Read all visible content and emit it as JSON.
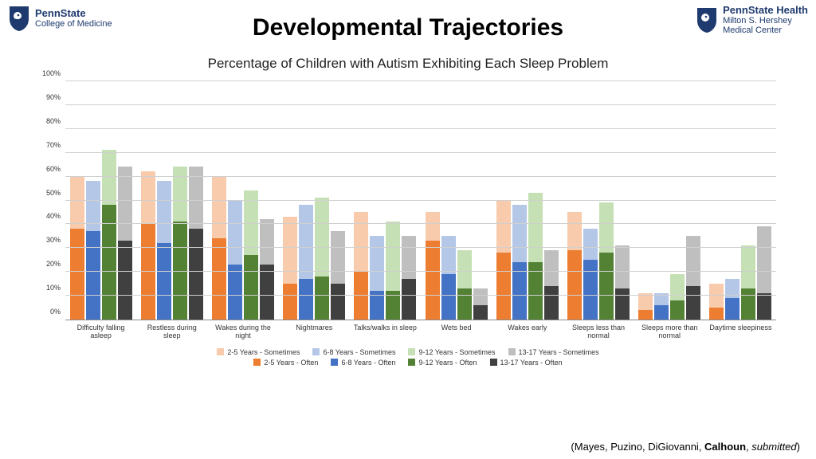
{
  "logos": {
    "left_line1": "PennState",
    "left_line2": "College of Medicine",
    "right_line1": "PennState Health",
    "right_line2": "Milton S. Hershey",
    "right_line3": "Medical Center",
    "shield_color": "#1e3a6e"
  },
  "slide_title": "Developmental Trajectories",
  "chart": {
    "title": "Percentage of Children with Autism Exhibiting Each Sleep Problem",
    "type": "stacked-bar-grouped",
    "ylim": [
      0,
      100
    ],
    "ytick_step": 10,
    "ylabel_suffix": "%",
    "background_color": "#ffffff",
    "grid_color": "#d0d0d0",
    "categories": [
      "Difficulty falling asleep",
      "Restless during sleep",
      "Wakes during the night",
      "Nightmares",
      "Talks/walks in sleep",
      "Wets bed",
      "Wakes early",
      "Sleeps less than normal",
      "Sleeps more than normal",
      "Daytime sleepiness"
    ],
    "age_groups": [
      "2-5 Years",
      "6-8 Years",
      "9-12 Years",
      "13-17 Years"
    ],
    "colors_often": [
      "#ed7d31",
      "#4472c4",
      "#548235",
      "#404040"
    ],
    "colors_sometimes": [
      "#f8cbad",
      "#b4c7e7",
      "#c5e0b4",
      "#bfbfbf"
    ],
    "data_often": [
      [
        38,
        37,
        48,
        33
      ],
      [
        40,
        32,
        41,
        38
      ],
      [
        34,
        23,
        27,
        23
      ],
      [
        15,
        17,
        18,
        15
      ],
      [
        20,
        12,
        12,
        17
      ],
      [
        33,
        19,
        13,
        6
      ],
      [
        28,
        24,
        24,
        14
      ],
      [
        29,
        25,
        28,
        13
      ],
      [
        4,
        6,
        8,
        14
      ],
      [
        5,
        9,
        13,
        11
      ]
    ],
    "data_total": [
      [
        60,
        58,
        71,
        64
      ],
      [
        62,
        58,
        64,
        64
      ],
      [
        60,
        50,
        54,
        42
      ],
      [
        43,
        48,
        51,
        37
      ],
      [
        45,
        35,
        41,
        35
      ],
      [
        45,
        35,
        29,
        13
      ],
      [
        50,
        48,
        53,
        29
      ],
      [
        45,
        38,
        49,
        31
      ],
      [
        11,
        11,
        19,
        35
      ],
      [
        15,
        17,
        31,
        39
      ]
    ],
    "legend_labels_sometimes": [
      "2-5 Years - Sometimes",
      "6-8 Years - Sometimes",
      "9-12 Years - Sometimes",
      "13-17 Years - Sometimes"
    ],
    "legend_labels_often": [
      "2-5 Years - Often",
      "6-8 Years - Often",
      "9-12 Years - Often",
      "13-17 Years - Often"
    ]
  },
  "citation": {
    "prefix": "(Mayes, Puzino, DiGiovanni, ",
    "bold": "Calhoun",
    "suffix": ", ",
    "italic": "submitted",
    "close": ")"
  }
}
